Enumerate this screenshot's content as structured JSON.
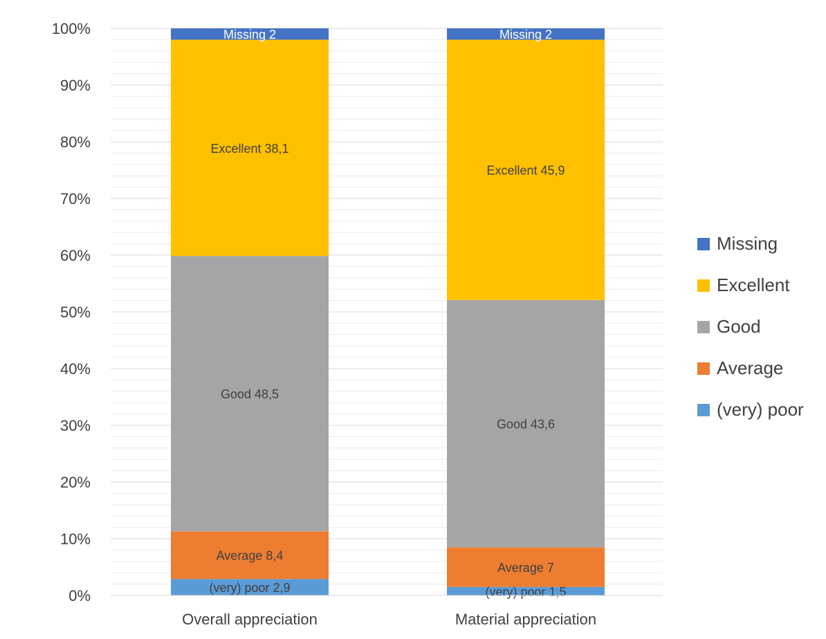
{
  "chart_data": {
    "type": "bar",
    "stacked": true,
    "percent_stacked": true,
    "categories": [
      "Overall appreciation",
      "Material appreciation"
    ],
    "series": [
      {
        "name": "(very) poor",
        "values": [
          2.9,
          1.5
        ],
        "color": "#5B9BD5",
        "label_prefix": "(very) poor",
        "label_values": [
          "2,9",
          "1,5"
        ]
      },
      {
        "name": "Average",
        "values": [
          8.4,
          7
        ],
        "color": "#ED7D31",
        "label_prefix": "Average",
        "label_values": [
          "8,4",
          "7"
        ]
      },
      {
        "name": "Good",
        "values": [
          48.5,
          43.6
        ],
        "color": "#A5A5A5",
        "label_prefix": "Good",
        "label_values": [
          "48,5",
          "43,6"
        ]
      },
      {
        "name": "Excellent",
        "values": [
          38.1,
          45.9
        ],
        "color": "#FFC000",
        "label_prefix": "Excellent",
        "label_values": [
          "38,1",
          "45,9"
        ]
      },
      {
        "name": "Missing",
        "values": [
          2,
          2
        ],
        "color": "#4472C4",
        "label_prefix": "Missing",
        "label_values": [
          "2",
          "2"
        ]
      }
    ],
    "ylim": [
      0,
      100
    ],
    "yticks": [
      "0%",
      "10%",
      "20%",
      "30%",
      "40%",
      "50%",
      "60%",
      "70%",
      "80%",
      "90%",
      "100%"
    ],
    "legend_order": [
      "Missing",
      "Excellent",
      "Good",
      "Average",
      "(very) poor"
    ],
    "legend_position": "right",
    "grid": true,
    "title": "",
    "xlabel": "",
    "ylabel": ""
  }
}
